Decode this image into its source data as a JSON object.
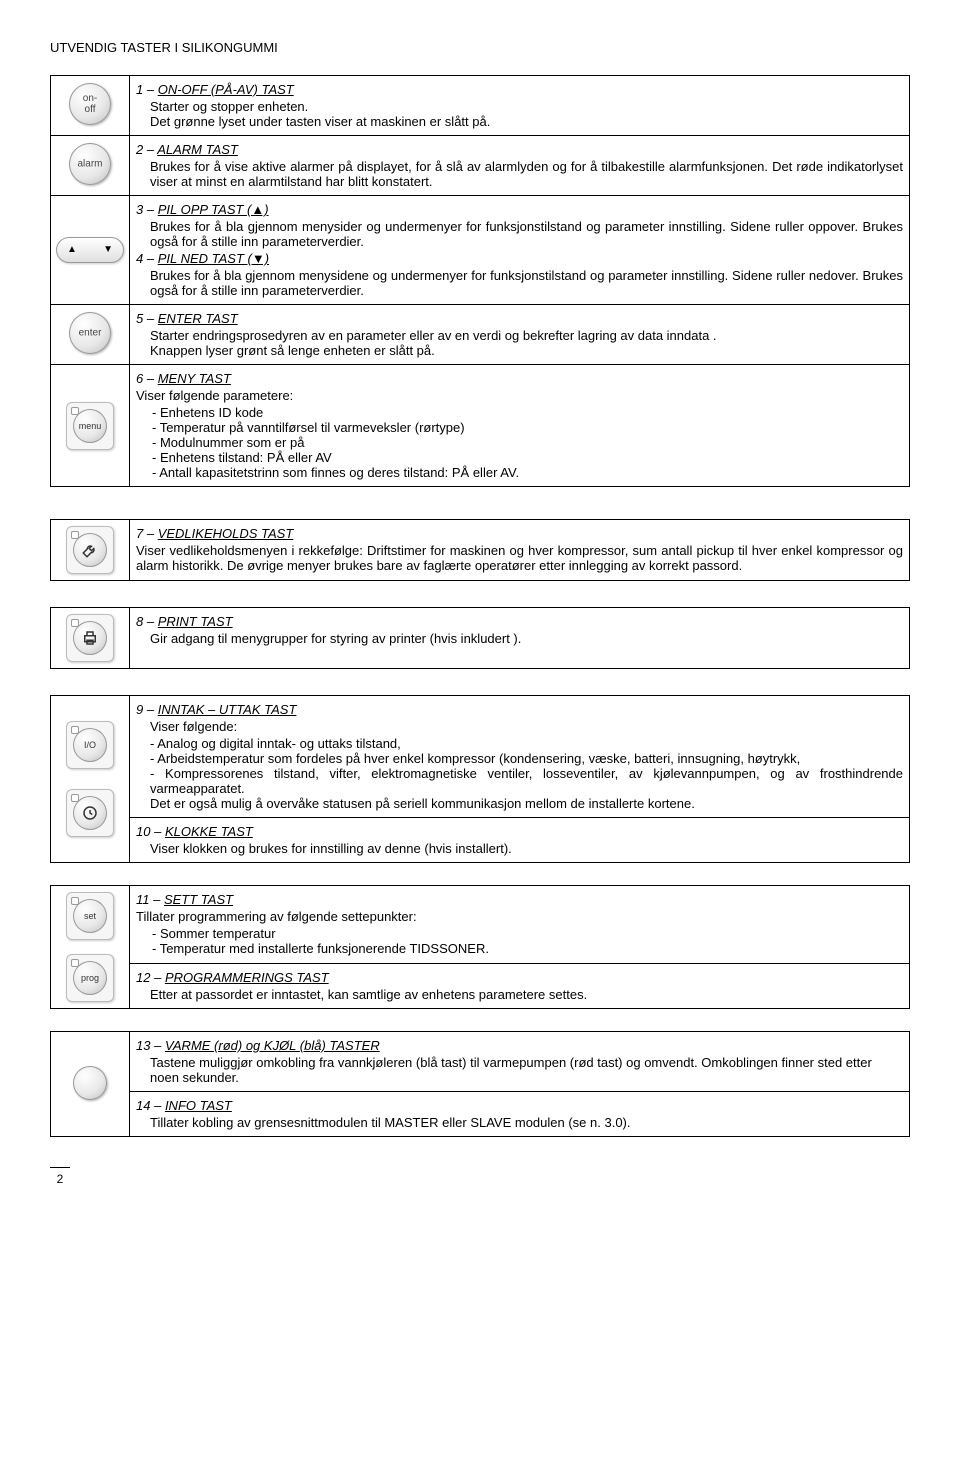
{
  "page_title": "UTVENDIG TASTER I SILIKONGUMMI",
  "page_number": "2",
  "rows": [
    {
      "icon_label": "on-off",
      "title_num": "1",
      "title_text": "ON-OFF (PÅ-AV) TAST",
      "body_html": "Starter og stopper enheten.<br>Det grønne lyset  under tasten viser at maskinen er slått på."
    },
    {
      "icon_label": "alarm",
      "title_num": "2",
      "title_text": "ALARM TAST",
      "body_html": "Brukes for å vise aktive alarmer på displayet, for å slå av alarmlyden og for å tilbakestille alarmfunksjonen. Det røde indikatorlyset viser at minst en alarmtilstand har blitt konstatert."
    },
    {
      "title_a_num": "3",
      "title_a_text": "PIL OPP TAST (▲)",
      "body_a": "Brukes for å bla gjennom menysider og undermenyer for funksjonstilstand og parameter innstilling. Sidene ruller oppover. Brukes også for å stille inn parameterverdier.",
      "title_b_num": "4",
      "title_b_text": "PIL NED TAST (▼)",
      "body_b": "Brukes for å bla gjennom menysidene og undermenyer for funksjonstilstand og parameter innstilling. Sidene ruller nedover. Brukes også for å stille inn parameterverdier."
    },
    {
      "icon_label": "enter",
      "title_num": "5",
      "title_text": "ENTER TAST",
      "body_html": "Starter endringsprosedyren av en parameter eller av en verdi og bekrefter lagring av data inndata .<br>Knappen lyser grønt så lenge enheten er slått på."
    },
    {
      "icon_label": "menu",
      "title_num": "6",
      "title_text": "MENY TAST",
      "items_intro": "Viser følgende parametere:",
      "items": [
        "- Enhetens ID kode",
        "- Temperatur på vanntilførsel til varmeveksler (rørtype)",
        "-    Modulnummer som er på",
        "-    Enhetens tilstand: PÅ eller AV",
        "-    Antall kapasitetstrinn som finnes og deres tilstand: PÅ eller AV."
      ]
    },
    {
      "icon_svg": "wrench",
      "title_num": "7",
      "title_text": "VEDLIKEHOLDS TAST",
      "body_html": "Viser vedlikeholdsmenyen i rekkefølge: Driftstimer for maskinen og hver kompressor, sum antall pickup til hver enkel kompressor og alarm historikk. De øvrige menyer brukes bare av faglærte operatører etter innlegging av korrekt passord."
    },
    {
      "icon_svg": "printer",
      "title_num": "8",
      "title_text": "PRINT TAST",
      "body_html": "Gir adgang til menygrupper for styring av printer (hvis inkludert )."
    },
    {
      "icon_label": "I/O",
      "title_a_num": "9",
      "title_a_text": "INNTAK – UTTAK TAST",
      "io_intro": "Viser følgende:",
      "io_items": [
        "-  Analog og digital inntak- og uttaks tilstand,",
        "- Arbeidstemperatur som fordeles på hver enkel kompressor (kondensering, væske, batteri, innsugning, høytrykk,",
        "- Kompressorenes tilstand, vifter, elektromagnetiske ventiler, losseventiler, av kjølevannpumpen, og av frosthindrende varmeapparatet.",
        "Det er også mulig å overvåke statusen på seriell kommunikasjon mellom de installerte kortene."
      ],
      "title_b_num": "10",
      "title_b_text": "KLOKKE TAST",
      "body_b": "Viser klokken og brukes for innstilling av denne (hvis installert)."
    },
    {
      "icon_label": "set",
      "title_a_num": "11",
      "title_a_text": "SETT TAST",
      "set_intro": "Tillater programmering av følgende settepunkter:",
      "set_items": [
        "- Sommer temperatur",
        "- Temperatur med installerte funksjonerende TIDSSONER."
      ],
      "icon_label_b": "prog",
      "title_b_num": "12",
      "title_b_text": "PROGRAMMERINGS TAST",
      "body_b": "Etter at passordet er inntastet, kan samtlige av enhetens parametere settes."
    },
    {
      "title_a_num": "13",
      "title_a_text": "VARME (rød) og KJØL (blå) TASTER",
      "body_a": "Tastene muliggjør omkobling fra vannkjøleren (blå tast) til varmepumpen (rød tast) og omvendt. Omkoblingen finner sted etter noen sekunder.",
      "title_b_num": "14",
      "title_b_text": "INFO TAST",
      "body_b": "Tillater kobling av grensesnittmodulen til MASTER eller SLAVE modulen (se n. 3.0)."
    }
  ]
}
